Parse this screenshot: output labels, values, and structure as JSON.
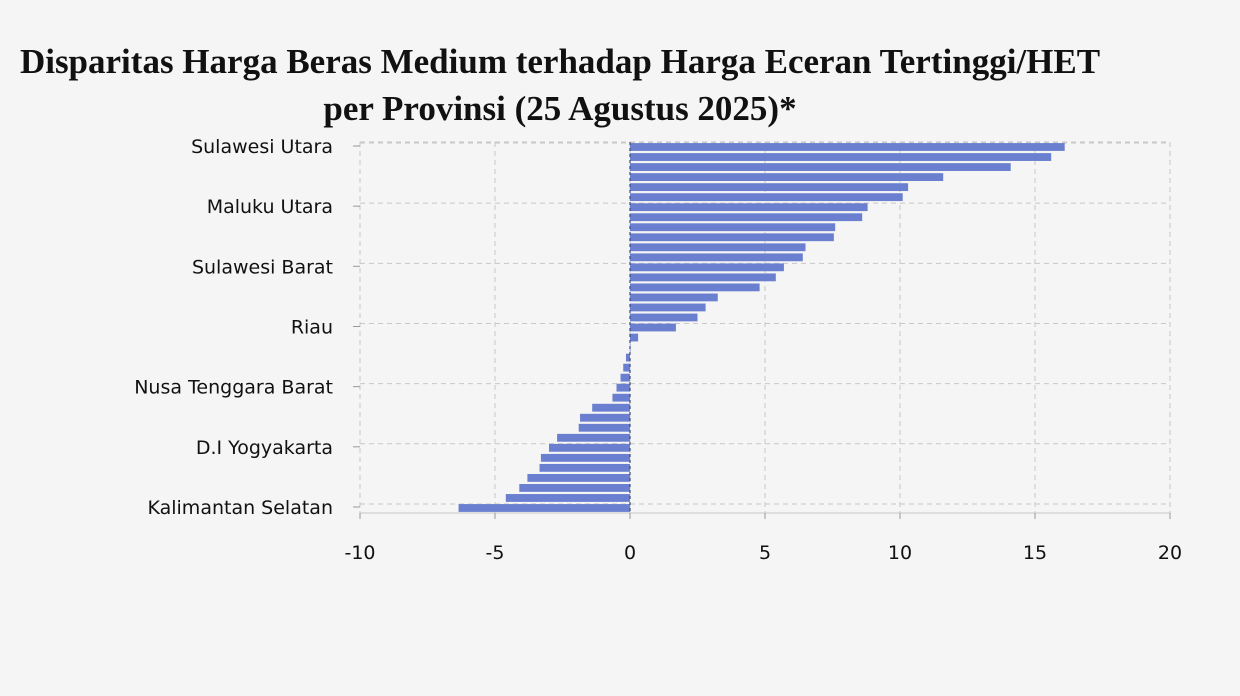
{
  "chart_data": {
    "type": "bar",
    "orientation": "horizontal",
    "title": "Disparitas Harga Beras Medium terhadap Harga Eceran Tertinggi/HET per Provinsi (25 Agustus 2025)*",
    "xlabel": "",
    "ylabel": "",
    "xlim": [
      -10,
      20
    ],
    "x_ticks": [
      -10,
      -5,
      0,
      5,
      10,
      15,
      20
    ],
    "grid": true,
    "legend": "none",
    "bar_color": "#6a7fcf",
    "y_tick_labels": [
      "Sulawesi Utara",
      "Maluku Utara",
      "Sulawesi Barat",
      "Riau",
      "Nusa Tenggara Barat",
      "D.I Yogyakarta",
      "Kalimantan Selatan"
    ],
    "y_tick_indices": [
      0,
      6,
      12,
      18,
      24,
      30,
      36
    ],
    "values": [
      16.1,
      15.6,
      14.1,
      11.6,
      10.3,
      10.1,
      8.8,
      8.6,
      7.6,
      7.55,
      6.5,
      6.4,
      5.7,
      5.4,
      4.8,
      3.25,
      2.8,
      2.5,
      1.7,
      0.3,
      0.0,
      -0.15,
      -0.25,
      -0.35,
      -0.5,
      -0.65,
      -1.4,
      -1.85,
      -1.9,
      -2.7,
      -3.0,
      -3.3,
      -3.35,
      -3.8,
      -4.1,
      -4.6,
      -6.35
    ]
  }
}
